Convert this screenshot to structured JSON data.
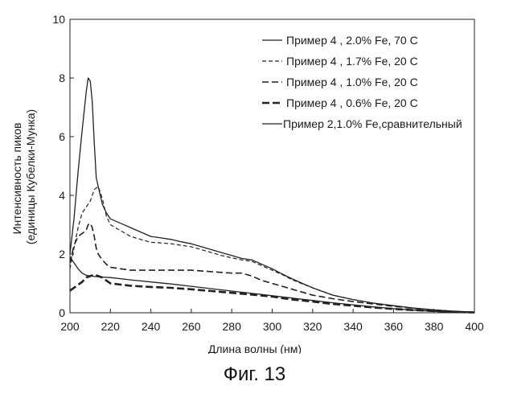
{
  "caption": "Фиг. 13",
  "chart_data": {
    "type": "line",
    "title": "",
    "xlabel": "Длина волны (нм)",
    "ylabel": [
      "Интенсивность пиков",
      "(единицы Кубелки-Мунка)"
    ],
    "xlim": [
      200,
      400
    ],
    "ylim": [
      0,
      10
    ],
    "xticks": [
      200,
      220,
      240,
      260,
      280,
      300,
      320,
      340,
      360,
      380,
      400
    ],
    "yticks": [
      0,
      2,
      4,
      6,
      8,
      10
    ],
    "legend_position": "top-right",
    "series": [
      {
        "name": "Пример 4 , 2.0% Fe, 70 C",
        "style": "solid",
        "color": "#222222",
        "x": [
          200,
          202,
          204,
          206,
          208,
          209,
          210,
          211,
          212,
          213,
          214,
          216,
          218,
          220,
          225,
          230,
          235,
          240,
          245,
          250,
          255,
          260,
          265,
          270,
          275,
          280,
          285,
          290,
          295,
          300,
          305,
          310,
          315,
          320,
          330,
          340,
          350,
          360,
          370,
          380,
          390,
          400
        ],
        "y": [
          2.0,
          3.2,
          4.8,
          6.2,
          7.5,
          8.0,
          7.9,
          7.2,
          5.8,
          4.6,
          4.3,
          3.7,
          3.4,
          3.2,
          3.05,
          2.9,
          2.75,
          2.6,
          2.55,
          2.5,
          2.42,
          2.35,
          2.25,
          2.15,
          2.05,
          1.95,
          1.85,
          1.8,
          1.65,
          1.5,
          1.32,
          1.15,
          1.0,
          0.85,
          0.6,
          0.45,
          0.33,
          0.24,
          0.16,
          0.1,
          0.05,
          0.02
        ]
      },
      {
        "name": "Пример 4 , 1.7% Fe, 20 C",
        "style": "dashed",
        "color": "#222222",
        "x": [
          200,
          202,
          204,
          206,
          208,
          210,
          212,
          214,
          216,
          218,
          220,
          225,
          230,
          235,
          240,
          245,
          250,
          255,
          260,
          265,
          270,
          275,
          280,
          285,
          290,
          295,
          300,
          305,
          310,
          315,
          320,
          330,
          340,
          350,
          360,
          370,
          380,
          390,
          400
        ],
        "y": [
          1.5,
          2.2,
          2.9,
          3.4,
          3.6,
          3.8,
          4.2,
          4.3,
          3.9,
          3.3,
          3.0,
          2.8,
          2.6,
          2.5,
          2.4,
          2.38,
          2.35,
          2.3,
          2.25,
          2.15,
          2.05,
          1.95,
          1.87,
          1.8,
          1.75,
          1.6,
          1.45,
          1.3,
          1.12,
          0.98,
          0.85,
          0.6,
          0.45,
          0.33,
          0.24,
          0.16,
          0.1,
          0.05,
          0.02
        ]
      },
      {
        "name": "Пример 4 , 1.0% Fe, 20 C",
        "style": "dashed-long",
        "color": "#222222",
        "x": [
          200,
          202,
          204,
          206,
          208,
          209,
          210,
          211,
          212,
          213,
          214,
          216,
          218,
          220,
          225,
          230,
          240,
          250,
          260,
          270,
          280,
          285,
          290,
          295,
          300,
          310,
          320,
          330,
          340,
          350,
          360,
          370,
          380,
          390,
          400
        ],
        "y": [
          1.7,
          2.3,
          2.6,
          2.7,
          2.8,
          3.0,
          3.05,
          2.9,
          2.6,
          2.2,
          2.0,
          1.8,
          1.65,
          1.55,
          1.5,
          1.45,
          1.45,
          1.45,
          1.45,
          1.4,
          1.35,
          1.35,
          1.25,
          1.1,
          1.0,
          0.8,
          0.6,
          0.48,
          0.38,
          0.3,
          0.22,
          0.15,
          0.09,
          0.05,
          0.02
        ]
      },
      {
        "name": "Пример 4 , 0.6% Fe, 20 C",
        "style": "dashed-bold",
        "color": "#222222",
        "x": [
          200,
          203,
          206,
          208,
          210,
          212,
          214,
          216,
          218,
          220,
          230,
          240,
          250,
          260,
          270,
          280,
          290,
          300,
          310,
          320,
          330,
          340,
          350,
          360,
          370,
          380,
          390,
          400
        ],
        "y": [
          0.75,
          0.9,
          1.05,
          1.2,
          1.25,
          1.3,
          1.25,
          1.2,
          1.1,
          1.0,
          0.92,
          0.88,
          0.85,
          0.8,
          0.74,
          0.68,
          0.62,
          0.55,
          0.45,
          0.38,
          0.3,
          0.24,
          0.18,
          0.13,
          0.09,
          0.06,
          0.03,
          0.01
        ]
      },
      {
        "name": "Пример 2,1.0% Fe,сравнительный",
        "style": "solid",
        "color": "#222222",
        "x": [
          200,
          202,
          204,
          206,
          208,
          210,
          215,
          220,
          230,
          240,
          250,
          260,
          270,
          280,
          290,
          300,
          310,
          320,
          330,
          340,
          350,
          360,
          370,
          380,
          390,
          400
        ],
        "y": [
          1.9,
          1.7,
          1.5,
          1.35,
          1.28,
          1.25,
          1.22,
          1.2,
          1.12,
          1.05,
          0.98,
          0.9,
          0.82,
          0.74,
          0.66,
          0.58,
          0.5,
          0.42,
          0.34,
          0.27,
          0.2,
          0.14,
          0.09,
          0.05,
          0.02,
          0.01
        ]
      }
    ]
  }
}
